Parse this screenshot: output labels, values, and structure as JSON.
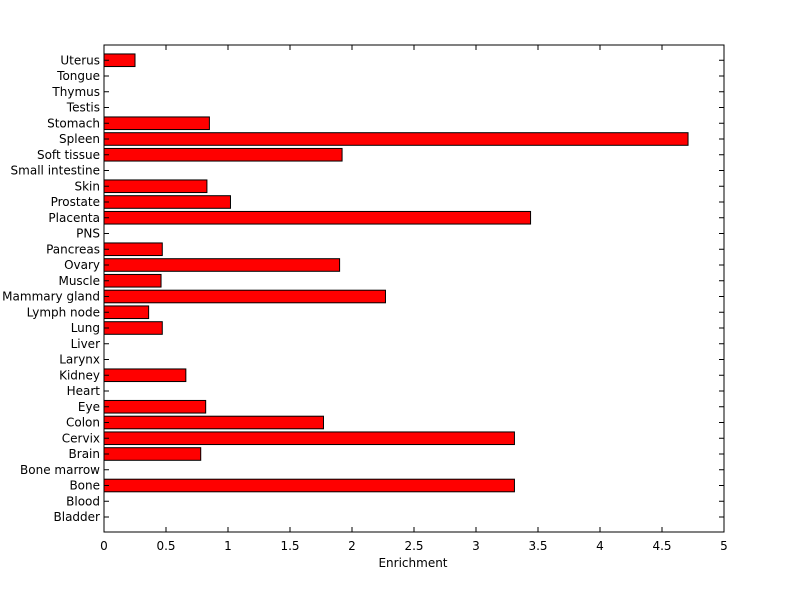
{
  "chart_data": {
    "type": "bar",
    "orientation": "horizontal",
    "title": "",
    "xlabel": "Enrichment",
    "ylabel": "",
    "xlim": [
      0,
      5
    ],
    "xticks": [
      "0",
      "0.5",
      "1",
      "1.5",
      "2",
      "2.5",
      "3",
      "3.5",
      "4",
      "4.5",
      "5"
    ],
    "categories": [
      "Bladder",
      "Blood",
      "Bone",
      "Bone marrow",
      "Brain",
      "Cervix",
      "Colon",
      "Eye",
      "Heart",
      "Kidney",
      "Larynx",
      "Liver",
      "Lung",
      "Lymph node",
      "Mammary gland",
      "Muscle",
      "Ovary",
      "Pancreas",
      "PNS",
      "Placenta",
      "Prostate",
      "Skin",
      "Small intestine",
      "Soft tissue",
      "Spleen",
      "Stomach",
      "Testis",
      "Thymus",
      "Tongue",
      "Uterus"
    ],
    "values": [
      0,
      0,
      3.31,
      0,
      0.78,
      3.31,
      1.77,
      0.82,
      0,
      0.66,
      0,
      0,
      0.47,
      0.36,
      2.27,
      0.46,
      1.9,
      0.47,
      0,
      3.44,
      1.02,
      0.83,
      0,
      1.92,
      4.71,
      0.85,
      0,
      0,
      0,
      0.25
    ],
    "grid": false,
    "legend": "none",
    "bar_color": "#ff0000",
    "edge_color": "#000000"
  }
}
